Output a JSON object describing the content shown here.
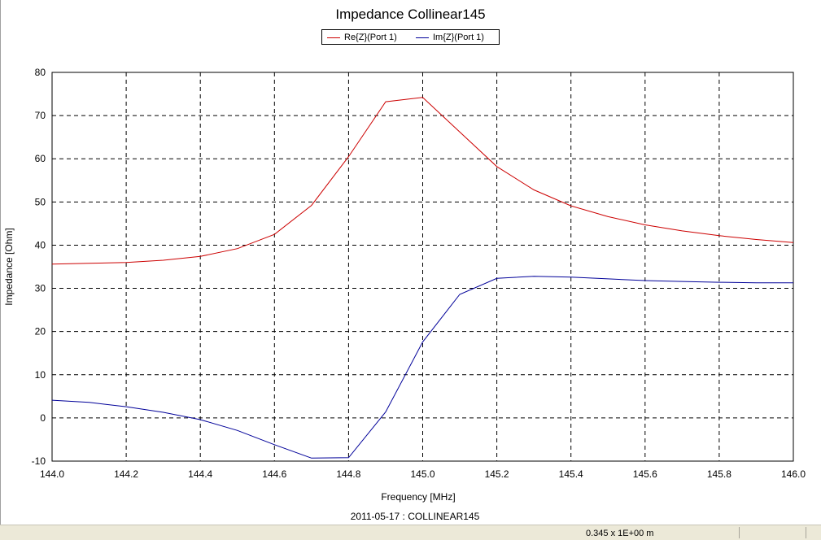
{
  "chart_data": {
    "type": "line",
    "title": "Impedance Collinear145",
    "xlabel": "Frequency [MHz]",
    "ylabel": "Impedance [Ohm]",
    "subtitle": "2011-05-17 : COLLINEAR145",
    "xlim": [
      144.0,
      146.0
    ],
    "ylim": [
      -10,
      80
    ],
    "x_ticks": [
      "144.0",
      "144.2",
      "144.4",
      "144.6",
      "144.8",
      "145.0",
      "145.2",
      "145.4",
      "145.6",
      "145.8",
      "146.0"
    ],
    "y_ticks": [
      "80",
      "70",
      "60",
      "50",
      "40",
      "30",
      "20",
      "10",
      "0",
      "-10"
    ],
    "grid": true,
    "legend_position": "top-center",
    "x": [
      144.0,
      144.1,
      144.2,
      144.3,
      144.4,
      144.5,
      144.6,
      144.7,
      144.8,
      144.9,
      145.0,
      145.1,
      145.2,
      145.3,
      145.4,
      145.5,
      145.6,
      145.7,
      145.8,
      145.9,
      146.0
    ],
    "series": [
      {
        "name": "Re{Z}(Port 1)",
        "color": "#cc0000",
        "values": [
          35.6,
          35.8,
          36.0,
          36.5,
          37.4,
          39.2,
          42.5,
          49.2,
          60.5,
          73.2,
          74.2,
          66.2,
          58.2,
          52.8,
          49.1,
          46.6,
          44.7,
          43.3,
          42.2,
          41.3,
          40.6
        ]
      },
      {
        "name": "Im{Z}(Port 1)",
        "color": "#000099",
        "values": [
          4.1,
          3.6,
          2.6,
          1.3,
          -0.4,
          -2.9,
          -6.2,
          -9.3,
          -9.2,
          1.4,
          17.6,
          28.6,
          32.3,
          32.8,
          32.6,
          32.2,
          31.8,
          31.6,
          31.4,
          31.3,
          31.3
        ]
      }
    ]
  },
  "status": {
    "readout": "0.345 x 1E+00 m"
  }
}
